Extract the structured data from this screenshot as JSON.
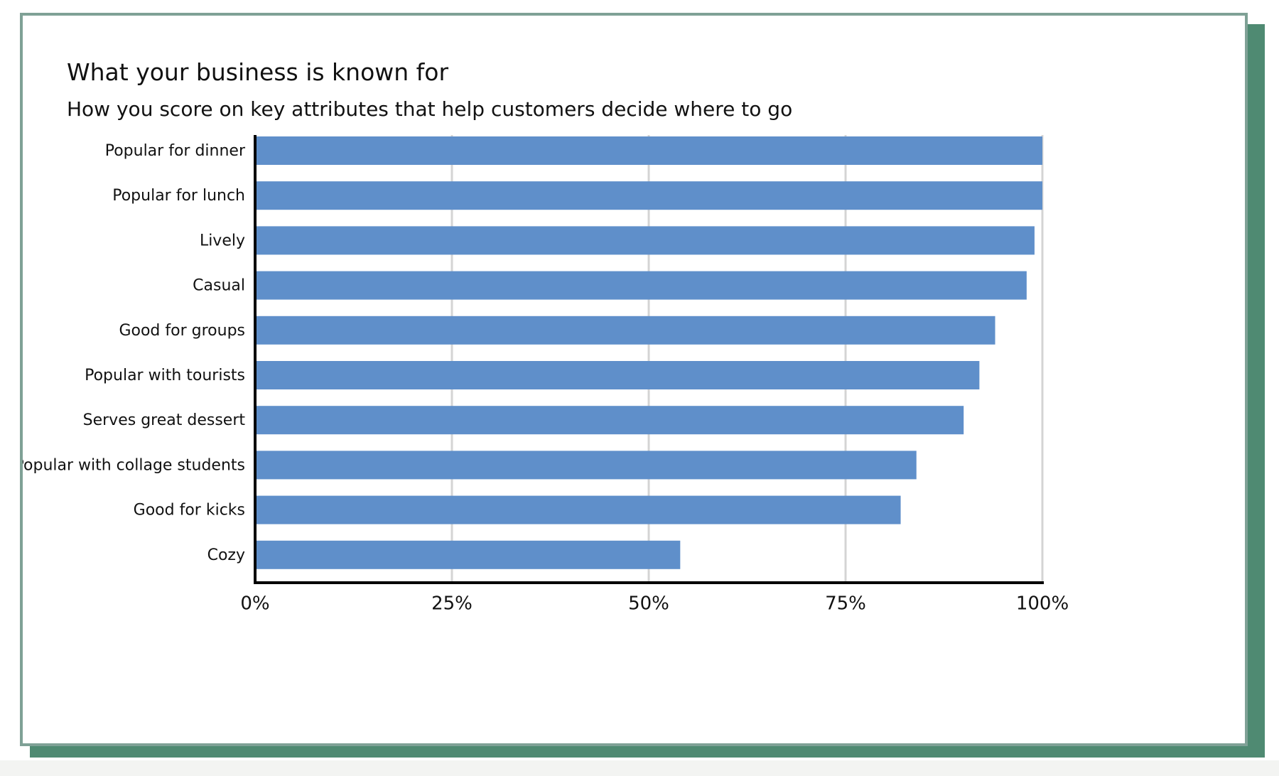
{
  "chart_data": {
    "type": "bar",
    "orientation": "horizontal",
    "title": "What your business is known for",
    "subtitle": "How you score on key attributes that help customers decide where to go",
    "categories": [
      "Popular for dinner",
      "Popular for lunch",
      "Lively",
      "Casual",
      "Good for groups",
      "Popular with tourists",
      "Serves great dessert",
      "Popular with collage students",
      "Good for kicks",
      "Cozy"
    ],
    "values": [
      100,
      100,
      99,
      98,
      94,
      92,
      90,
      84,
      82,
      54
    ],
    "xlim": [
      0,
      100
    ],
    "xticks": [
      0,
      25,
      50,
      75,
      100
    ],
    "xtick_labels": [
      "0%",
      "25%",
      "50%",
      "75%",
      "100%"
    ],
    "grid": "vertical",
    "bar_color": "#5f8fca",
    "grid_color": "#d4d4d4",
    "axis_color": "#000000"
  }
}
